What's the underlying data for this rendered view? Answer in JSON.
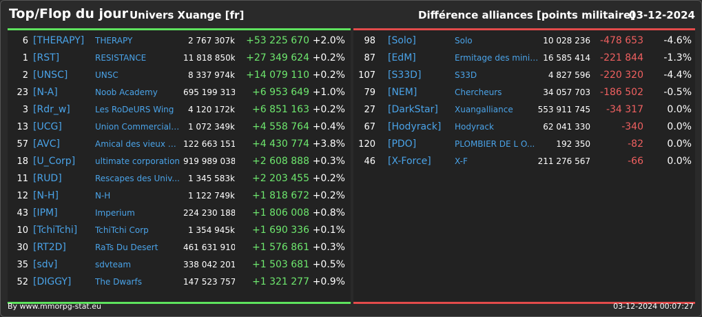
{
  "header": {
    "title": "Top/Flop du jour",
    "univers": "Univers Xuange [fr]",
    "subtitle": "Différence alliances [points militaire]",
    "date": "03-12-2024"
  },
  "top": [
    {
      "rank": "6",
      "tag": "[THERAPY]",
      "name": "THERAPY",
      "points": "2 767 307k",
      "diff": "+53 225 670",
      "pct": "+2.0%"
    },
    {
      "rank": "1",
      "tag": "[RST]",
      "name": "RESISTANCE",
      "points": "11 818 850k",
      "diff": "+27 349 624",
      "pct": "+0.2%"
    },
    {
      "rank": "2",
      "tag": "[UNSC]",
      "name": "UNSC",
      "points": "8 337 974k",
      "diff": "+14 079 110",
      "pct": "+0.2%"
    },
    {
      "rank": "23",
      "tag": "[N-A]",
      "name": "Noob Academy",
      "points": "695 199 313",
      "diff": "+6 953 649",
      "pct": "+1.0%"
    },
    {
      "rank": "3",
      "tag": "[Rdr_w]",
      "name": "Les RoDeURS Wing",
      "points": "4 120 172k",
      "diff": "+6 851 163",
      "pct": "+0.2%"
    },
    {
      "rank": "13",
      "tag": "[UCG]",
      "name": "Union Commerciale...",
      "points": "1 072 349k",
      "diff": "+4 558 764",
      "pct": "+0.4%"
    },
    {
      "rank": "57",
      "tag": "[AVC]",
      "name": "Amical des vieux co...",
      "points": "122 663 151",
      "diff": "+4 430 774",
      "pct": "+3.8%"
    },
    {
      "rank": "18",
      "tag": "[U_Corp]",
      "name": "ultimate corporation",
      "points": "919 989 038",
      "diff": "+2 608 888",
      "pct": "+0.3%"
    },
    {
      "rank": "11",
      "tag": "[RUD]",
      "name": "Rescapes des Univ...",
      "points": "1 345 583k",
      "diff": "+2 203 455",
      "pct": "+0.2%"
    },
    {
      "rank": "12",
      "tag": "[N-H]",
      "name": "N-H",
      "points": "1 122 749k",
      "diff": "+1 818 672",
      "pct": "+0.2%"
    },
    {
      "rank": "43",
      "tag": "[IPM]",
      "name": "Imperium",
      "points": "224 230 188",
      "diff": "+1 806 008",
      "pct": "+0.8%"
    },
    {
      "rank": "10",
      "tag": "[TchiTchi]",
      "name": "TchiTchi Corp",
      "points": "1 354 945k",
      "diff": "+1 690 336",
      "pct": "+0.1%"
    },
    {
      "rank": "30",
      "tag": "[RT2D]",
      "name": "RaTs Du Desert",
      "points": "461 631 910",
      "diff": "+1 576 861",
      "pct": "+0.3%"
    },
    {
      "rank": "35",
      "tag": "[sdv]",
      "name": "sdvteam",
      "points": "338 042 201",
      "diff": "+1 503 681",
      "pct": "+0.5%"
    },
    {
      "rank": "52",
      "tag": "[DIGGY]",
      "name": "The Dwarfs",
      "points": "147 523 757",
      "diff": "+1 321 277",
      "pct": "+0.9%"
    }
  ],
  "flop": [
    {
      "rank": "98",
      "tag": "[Solo]",
      "name": "Solo",
      "points": "10 028 236",
      "diff": "-478 653",
      "pct": "-4.6%"
    },
    {
      "rank": "87",
      "tag": "[EdM]",
      "name": "Ermitage des minier...",
      "points": "16 585 414",
      "diff": "-221 844",
      "pct": "-1.3%"
    },
    {
      "rank": "107",
      "tag": "[S33D]",
      "name": "S33D",
      "points": "4 827 596",
      "diff": "-220 320",
      "pct": "-4.4%"
    },
    {
      "rank": "79",
      "tag": "[NEM]",
      "name": "Chercheurs",
      "points": "34 057 703",
      "diff": "-186 502",
      "pct": "-0.5%"
    },
    {
      "rank": "27",
      "tag": "[DarkStar]",
      "name": "Xuangalliance",
      "points": "553 911 745",
      "diff": "-34 317",
      "pct": "0.0%"
    },
    {
      "rank": "67",
      "tag": "[Hodyrack]",
      "name": "Hodyrack",
      "points": "62 041 330",
      "diff": "-340",
      "pct": "0.0%"
    },
    {
      "rank": "120",
      "tag": "[PDO]",
      "name": "PLOMBIER DE L O...",
      "points": "192 350",
      "diff": "-82",
      "pct": "0.0%"
    },
    {
      "rank": "46",
      "tag": "[X-Force]",
      "name": "X-F",
      "points": "211 276 567",
      "diff": "-66",
      "pct": "0.0%"
    }
  ],
  "colors": {
    "gain": "#6ee86e",
    "loss": "#f06060",
    "link": "#4aa3e8",
    "top_border": "#5ee35e",
    "flop_border": "#e34b4b"
  },
  "footer": {
    "credit": "By www.mmorpg-stat.eu",
    "timestamp": "03-12-2024 00:07:27"
  }
}
